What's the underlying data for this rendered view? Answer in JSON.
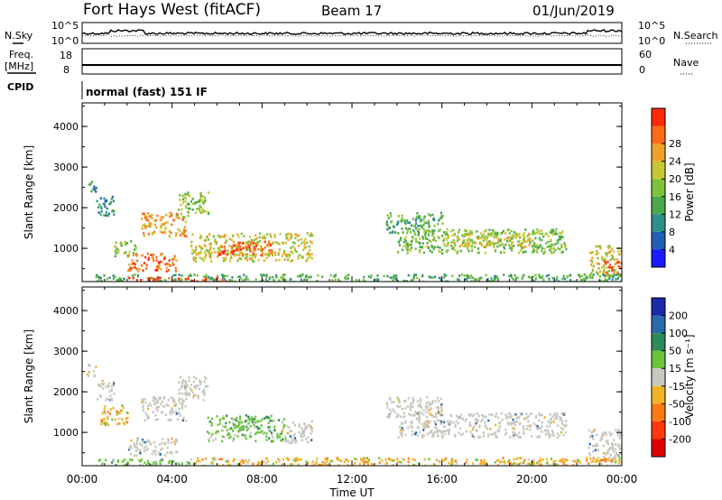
{
  "header": {
    "title": "Fort Hays West (fitACF)",
    "beam": "Beam 17",
    "date": "01/Jun/2019"
  },
  "top_panels": {
    "nsky_label": "N.Sky",
    "nsky_ticks": [
      "10^5",
      "10^0"
    ],
    "nsearch_label": "N.Search",
    "nsearch_ticks": [
      "10^5",
      "10^0"
    ],
    "freq_label": "Freq.",
    "freq_unit": "[MHz]",
    "freq_ticks": [
      "18",
      "8"
    ],
    "nave_label": "Nave",
    "nave_ticks": [
      "60",
      "0"
    ],
    "cpid_label": "CPID",
    "cpid_value": "normal (fast) 151 IF"
  },
  "chart_data": [
    {
      "type": "heatmap",
      "panel": "power",
      "xlabel": "Time UT",
      "ylabel": "Slant Range [km]",
      "x_ticks": [
        "00:00",
        "04:00",
        "08:00",
        "12:00",
        "16:00",
        "20:00",
        "00:00"
      ],
      "y_ticks": [
        "1000",
        "2000",
        "3000",
        "4000"
      ],
      "ylim": [
        180,
        4580
      ],
      "xlim_hours": [
        0,
        24
      ],
      "colorbar": {
        "label": "Power [dB]",
        "ticks": [
          "4",
          "8",
          "12",
          "16",
          "20",
          "24",
          "28"
        ],
        "colors": [
          "#1a1aff",
          "#1f5fb4",
          "#2f8f8a",
          "#4aa84a",
          "#7ec23c",
          "#c8c832",
          "#f0a028",
          "#ff6a14",
          "#ff2a0a"
        ]
      },
      "regions": [
        {
          "t0": 0.2,
          "t1": 0.6,
          "r0": 2400,
          "r1": 2700,
          "level": 2
        },
        {
          "t0": 0.6,
          "t1": 1.4,
          "r0": 1800,
          "r1": 2300,
          "level": 2
        },
        {
          "t0": 1.4,
          "t1": 2.4,
          "r0": 800,
          "r1": 1200,
          "level": 4
        },
        {
          "t0": 2.0,
          "t1": 4.2,
          "r0": 450,
          "r1": 900,
          "level": 7
        },
        {
          "t0": 2.6,
          "t1": 4.6,
          "r0": 1300,
          "r1": 1900,
          "level": 6
        },
        {
          "t0": 4.2,
          "t1": 5.6,
          "r0": 1800,
          "r1": 2400,
          "level": 4
        },
        {
          "t0": 4.8,
          "t1": 10.2,
          "r0": 700,
          "r1": 1400,
          "level": 5
        },
        {
          "t0": 6.0,
          "t1": 8.5,
          "r0": 850,
          "r1": 1200,
          "level": 7
        },
        {
          "t0": 13.5,
          "t1": 16.0,
          "r0": 1400,
          "r1": 1900,
          "level": 3
        },
        {
          "t0": 14.0,
          "t1": 21.5,
          "r0": 900,
          "r1": 1500,
          "level": 4
        },
        {
          "t0": 16.5,
          "t1": 20.0,
          "r0": 1050,
          "r1": 1400,
          "level": 5
        },
        {
          "t0": 22.5,
          "t1": 24.0,
          "r0": 300,
          "r1": 1100,
          "level": 5
        },
        {
          "t0": 23.2,
          "t1": 24.0,
          "r0": 350,
          "r1": 700,
          "level": 8
        },
        {
          "t0": 0.5,
          "t1": 24.0,
          "r0": 180,
          "r1": 380,
          "level": 3
        },
        {
          "t0": 2.0,
          "t1": 6.5,
          "r0": 190,
          "r1": 300,
          "level": 8
        }
      ]
    },
    {
      "type": "heatmap",
      "panel": "velocity",
      "xlabel": "Time UT",
      "ylabel": "Slant Range [km]",
      "x_ticks": [
        "00:00",
        "04:00",
        "08:00",
        "12:00",
        "16:00",
        "20:00",
        "00:00"
      ],
      "y_ticks": [
        "1000",
        "2000",
        "3000",
        "4000"
      ],
      "ylim": [
        180,
        4580
      ],
      "xlim_hours": [
        0,
        24
      ],
      "colorbar": {
        "label": "Velocity [m s⁻¹]",
        "ticks": [
          "200",
          "100",
          "50",
          "15",
          "-15",
          "-50",
          "-100",
          "-200"
        ],
        "colors": [
          "#1a2aa8",
          "#2a6aa8",
          "#2f8a5a",
          "#6cc43c",
          "#c8c8c0",
          "#f0b428",
          "#ff7a14",
          "#ff3a0a",
          "#e00000"
        ]
      },
      "regions": [
        {
          "t0": 0.2,
          "t1": 0.6,
          "r0": 2400,
          "r1": 2700,
          "kind": "gray"
        },
        {
          "t0": 0.6,
          "t1": 1.4,
          "r0": 1800,
          "r1": 2300,
          "kind": "gray"
        },
        {
          "t0": 0.8,
          "t1": 2.0,
          "r0": 1200,
          "r1": 1700,
          "kind": "orange"
        },
        {
          "t0": 2.0,
          "t1": 4.2,
          "r0": 450,
          "r1": 900,
          "kind": "gray"
        },
        {
          "t0": 2.6,
          "t1": 4.6,
          "r0": 1300,
          "r1": 1900,
          "kind": "gray"
        },
        {
          "t0": 4.2,
          "t1": 5.6,
          "r0": 1800,
          "r1": 2400,
          "kind": "gray"
        },
        {
          "t0": 5.5,
          "t1": 9.0,
          "r0": 800,
          "r1": 1450,
          "kind": "green"
        },
        {
          "t0": 8.8,
          "t1": 10.2,
          "r0": 750,
          "r1": 1300,
          "kind": "gray"
        },
        {
          "t0": 13.5,
          "t1": 16.0,
          "r0": 1400,
          "r1": 1900,
          "kind": "gray"
        },
        {
          "t0": 14.0,
          "t1": 21.5,
          "r0": 900,
          "r1": 1500,
          "kind": "gray"
        },
        {
          "t0": 22.5,
          "t1": 24.0,
          "r0": 300,
          "r1": 1100,
          "kind": "gray"
        },
        {
          "t0": 0.5,
          "t1": 5.0,
          "r0": 190,
          "r1": 360,
          "kind": "green"
        },
        {
          "t0": 5.0,
          "t1": 24.0,
          "r0": 190,
          "r1": 400,
          "kind": "orange"
        }
      ]
    }
  ]
}
